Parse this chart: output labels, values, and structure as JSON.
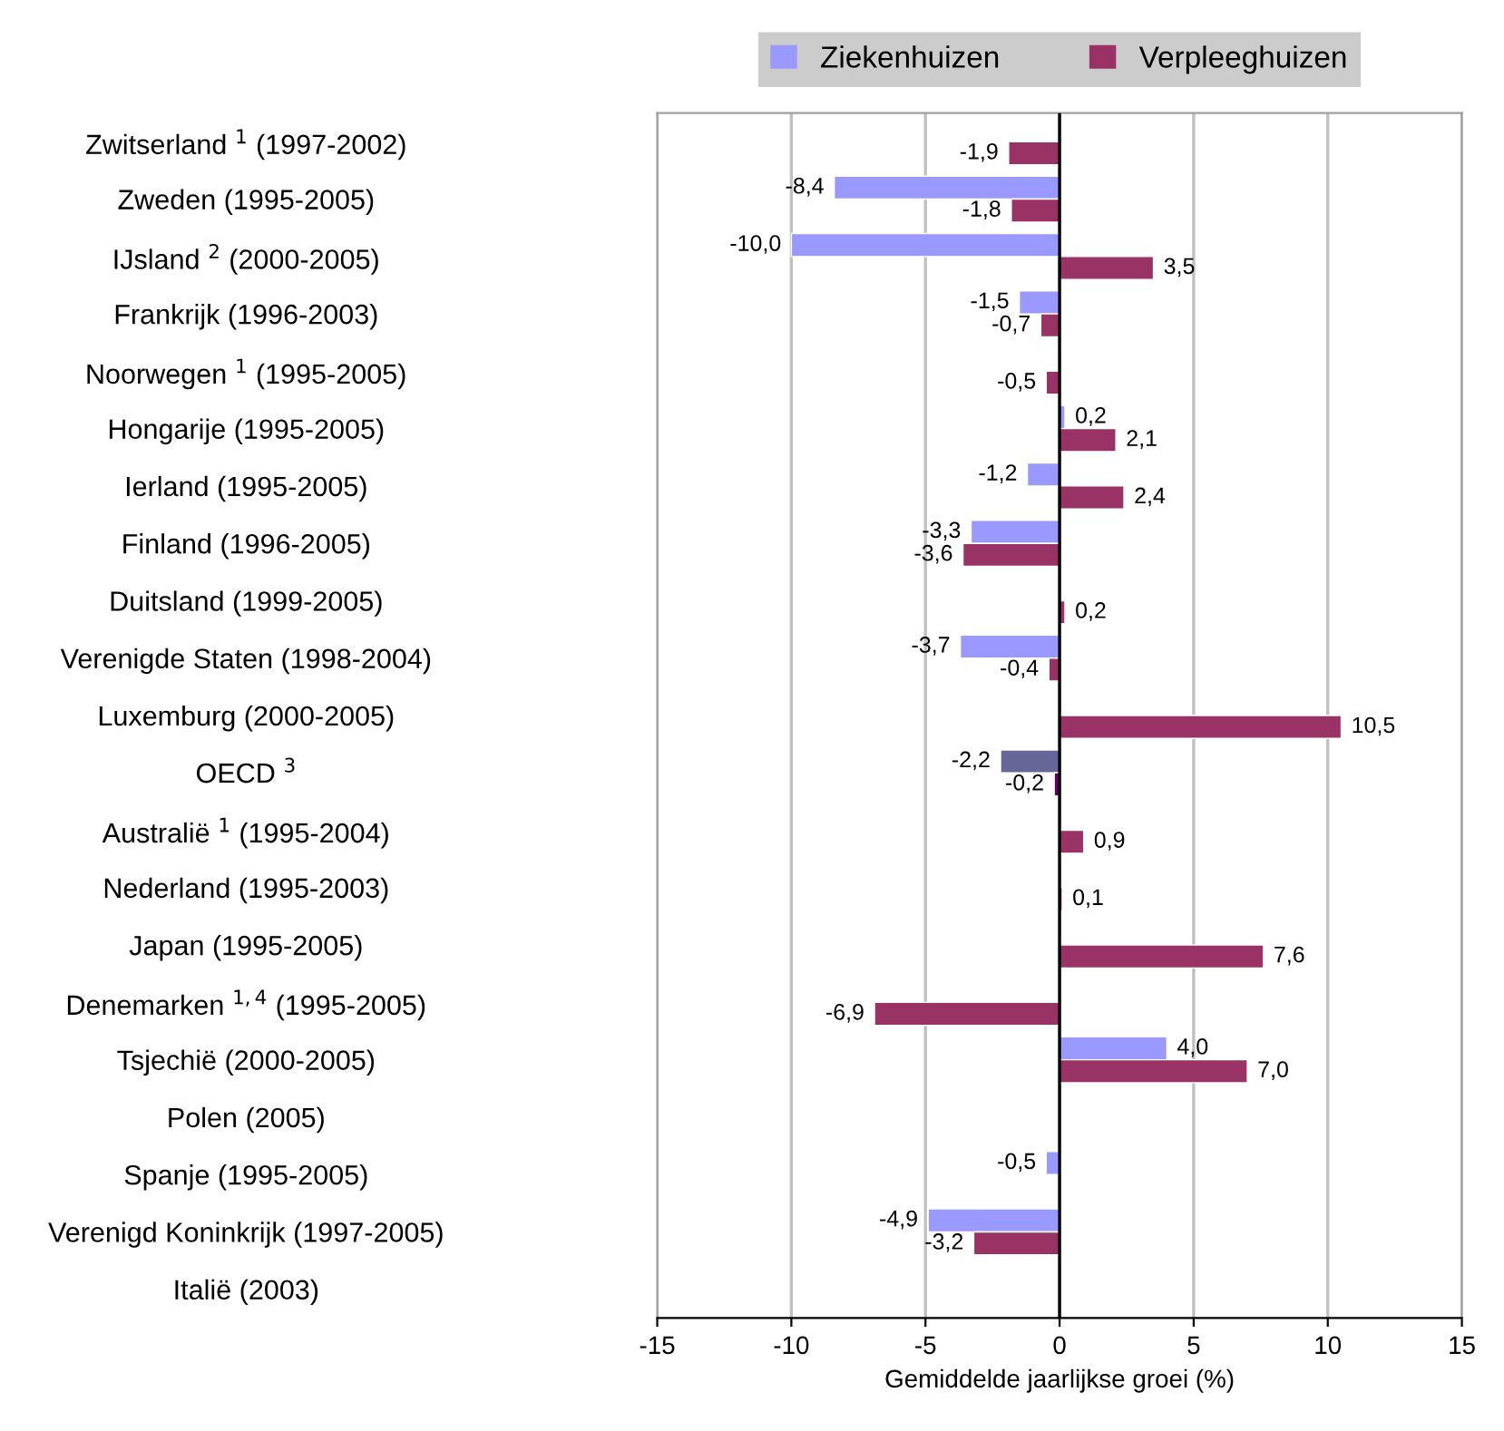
{
  "chart_data": {
    "type": "bar",
    "orientation": "horizontal",
    "xlabel": "Gemiddelde jaarlijkse groei (%)",
    "categories": [
      "Zwitserland $^{1}$ (1997-2002)",
      "Zweden (1995-2005)",
      "IJsland $^{2}$ (2000-2005)",
      "Frankrijk (1996-2003)",
      "Noorwegen $^{1}$ (1995-2005)",
      "Hongarije (1995-2005)",
      "Ierland (1995-2005)",
      "Finland (1996-2005)",
      "Duitsland (1999-2005)",
      "Verenigde Staten (1998-2004)",
      "Luxemburg (2000-2005)",
      "OECD $^{3}$",
      "Australië $^{1}$ (1995-2004)",
      "Nederland (1995-2003)",
      "Japan (1995-2005)",
      "Denemarken $^{1,4}$ (1995-2005)",
      "Tsjechië (2000-2005)",
      "Polen (2005)",
      "Spanje (1995-2005)",
      "Verenigd Koninkrijk (1997-2005)",
      "Italië (2003)"
    ],
    "series": [
      {
        "name": "Ziekenhuizen",
        "color": "#9999ff",
        "colors": [
          "#9999ff",
          "#9999ff",
          "#9999ff",
          "#9999ff",
          "#9999ff",
          "#9999ff",
          "#9999ff",
          "#9999ff",
          "#9999ff",
          "#9999ff",
          "#9999ff",
          "#666699",
          "#9999ff",
          "#9999ff",
          "#9999ff",
          "#9999ff",
          "#9999ff",
          "#9999ff",
          "#9999ff",
          "#9999ff",
          "#9999ff"
        ],
        "values": [
          null,
          -8.4,
          -10.0,
          -1.5,
          null,
          0.2,
          -1.2,
          -3.3,
          null,
          -3.7,
          null,
          -2.2,
          null,
          null,
          null,
          null,
          4.0,
          null,
          -0.5,
          -4.9,
          null
        ],
        "value_labels": [
          null,
          "-8,4",
          "-10,0",
          "-1,5",
          null,
          "0,2",
          "-1,2",
          "-3,3",
          null,
          "-3,7",
          null,
          "-2,2",
          null,
          null,
          null,
          null,
          "4,0",
          null,
          "-0,5",
          "-4,9",
          null
        ]
      },
      {
        "name": "Verpleeghuizen",
        "color": "#993366",
        "colors": [
          "#993366",
          "#993366",
          "#993366",
          "#993366",
          "#993366",
          "#993366",
          "#993366",
          "#993366",
          "#993366",
          "#993366",
          "#993366",
          "#660066",
          "#993366",
          "#993366",
          "#993366",
          "#993366",
          "#993366",
          "#993366",
          "#993366",
          "#993366",
          "#993366"
        ],
        "values": [
          -1.9,
          -1.8,
          3.5,
          -0.7,
          -0.5,
          2.1,
          2.4,
          -3.6,
          0.2,
          -0.4,
          10.5,
          -0.2,
          0.9,
          0.1,
          7.6,
          -6.9,
          7.0,
          null,
          null,
          -3.2,
          null
        ],
        "value_labels": [
          "-1,9",
          "-1,8",
          "3,5",
          "-0,7",
          "-0,5",
          "2,1",
          "2,4",
          "-3,6",
          "0,2",
          "-0,4",
          "10,5",
          "-0,2",
          "0,9",
          "0,1",
          "7,6",
          "-6,9",
          "7,0",
          null,
          null,
          "-3,2",
          null
        ]
      }
    ],
    "xlim": [
      -15,
      15
    ],
    "xticks": [
      -15,
      -10,
      -5,
      0,
      5,
      10,
      15
    ],
    "grid": "x",
    "legend": "top"
  }
}
